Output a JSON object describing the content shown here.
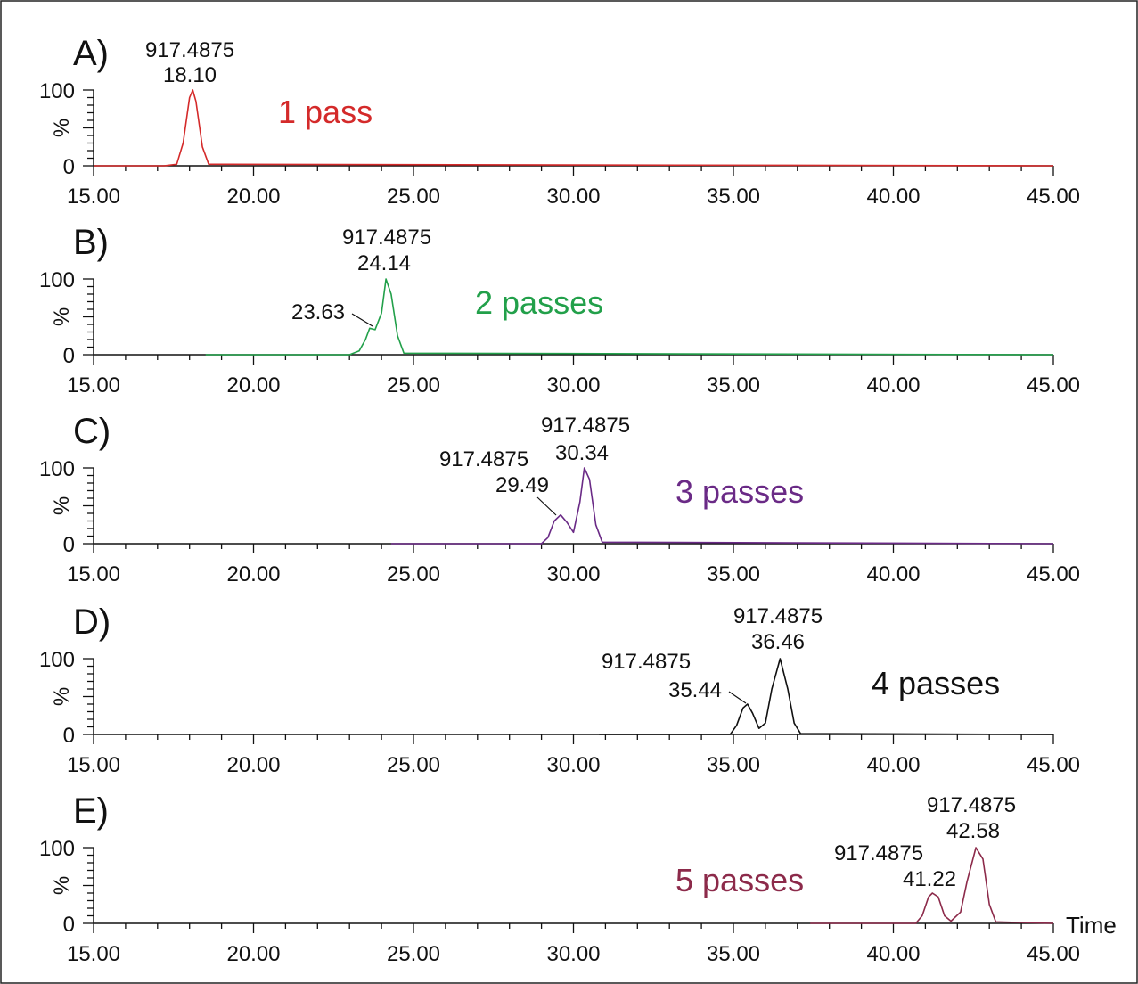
{
  "x_axis_label": "Time",
  "chart_data": [
    {
      "type": "line",
      "panel_label": "A)",
      "pass_label": "1 pass",
      "color": "#d42a2a",
      "xlim": [
        15,
        45
      ],
      "ylim": [
        0,
        100
      ],
      "ylabel": "%",
      "yticks": [
        "0",
        "100"
      ],
      "xticks": [
        "15.00",
        "20.00",
        "25.00",
        "30.00",
        "35.00",
        "40.00",
        "45.00"
      ],
      "peaks": [
        {
          "time": 18.1,
          "intensity": 100,
          "mz": "917.4875",
          "time_label": "18.10"
        }
      ],
      "x": [
        15,
        17.2,
        17.6,
        17.8,
        18.0,
        18.1,
        18.2,
        18.4,
        18.6,
        45
      ],
      "y": [
        0,
        0,
        2,
        30,
        90,
        100,
        85,
        25,
        2,
        0
      ]
    },
    {
      "type": "line",
      "panel_label": "B)",
      "pass_label": "2 passes",
      "color": "#22a04a",
      "xlim": [
        15,
        45
      ],
      "ylim": [
        0,
        100
      ],
      "ylabel": "%",
      "yticks": [
        "0",
        "100"
      ],
      "xticks": [
        "15.00",
        "20.00",
        "25.00",
        "30.00",
        "35.00",
        "40.00",
        "45.00"
      ],
      "peaks": [
        {
          "time": 23.63,
          "intensity": 35,
          "mz": "",
          "time_label": "23.63"
        },
        {
          "time": 24.14,
          "intensity": 100,
          "mz": "917.4875",
          "time_label": "24.14"
        }
      ],
      "x": [
        18.5,
        23.0,
        23.3,
        23.5,
        23.63,
        23.8,
        24.0,
        24.14,
        24.3,
        24.5,
        24.7,
        45
      ],
      "y": [
        0,
        0,
        5,
        20,
        35,
        33,
        55,
        100,
        80,
        25,
        2,
        0
      ]
    },
    {
      "type": "line",
      "panel_label": "C)",
      "pass_label": "3 passes",
      "color": "#6a2a86",
      "xlim": [
        15,
        45
      ],
      "ylim": [
        0,
        100
      ],
      "ylabel": "%",
      "yticks": [
        "0",
        "100"
      ],
      "xticks": [
        "15.00",
        "20.00",
        "25.00",
        "30.00",
        "35.00",
        "40.00",
        "45.00"
      ],
      "peaks": [
        {
          "time": 29.49,
          "intensity": 38,
          "mz": "917.4875",
          "time_label": "29.49"
        },
        {
          "time": 30.34,
          "intensity": 100,
          "mz": "917.4875",
          "time_label": "30.34"
        }
      ],
      "x": [
        24.3,
        29.0,
        29.2,
        29.4,
        29.6,
        29.8,
        30.0,
        30.2,
        30.34,
        30.5,
        30.7,
        30.9,
        45
      ],
      "y": [
        0,
        0,
        8,
        30,
        38,
        28,
        15,
        55,
        100,
        85,
        25,
        2,
        0
      ]
    },
    {
      "type": "line",
      "panel_label": "D)",
      "pass_label": "4 passes",
      "color": "#111111",
      "xlim": [
        15,
        45
      ],
      "ylim": [
        0,
        100
      ],
      "ylabel": "%",
      "yticks": [
        "0",
        "100"
      ],
      "xticks": [
        "15.00",
        "20.00",
        "25.00",
        "30.00",
        "35.00",
        "40.00",
        "45.00"
      ],
      "peaks": [
        {
          "time": 35.44,
          "intensity": 40,
          "mz": "917.4875",
          "time_label": "35.44"
        },
        {
          "time": 36.46,
          "intensity": 100,
          "mz": "917.4875",
          "time_label": "36.46"
        }
      ],
      "x": [
        30.8,
        34.9,
        35.1,
        35.3,
        35.44,
        35.6,
        35.8,
        36.0,
        36.2,
        36.46,
        36.7,
        36.9,
        37.1,
        45
      ],
      "y": [
        0,
        0,
        12,
        35,
        40,
        28,
        8,
        15,
        60,
        100,
        60,
        15,
        1,
        0
      ]
    },
    {
      "type": "line",
      "panel_label": "E)",
      "pass_label": "5 passes",
      "color": "#8c2a4a",
      "xlim": [
        15,
        45
      ],
      "ylim": [
        0,
        100
      ],
      "ylabel": "%",
      "yticks": [
        "0",
        "100"
      ],
      "xticks": [
        "15.00",
        "20.00",
        "25.00",
        "30.00",
        "35.00",
        "40.00",
        "45.00"
      ],
      "peaks": [
        {
          "time": 41.22,
          "intensity": 40,
          "mz": "917.4875",
          "time_label": "41.22"
        },
        {
          "time": 42.58,
          "intensity": 100,
          "mz": "917.4875",
          "time_label": "42.58"
        }
      ],
      "x": [
        37.4,
        40.7,
        40.9,
        41.1,
        41.22,
        41.4,
        41.6,
        41.8,
        42.1,
        42.3,
        42.58,
        42.8,
        43.0,
        43.2,
        45
      ],
      "y": [
        0,
        0,
        10,
        35,
        40,
        35,
        10,
        3,
        15,
        55,
        100,
        85,
        25,
        2,
        0
      ]
    }
  ]
}
